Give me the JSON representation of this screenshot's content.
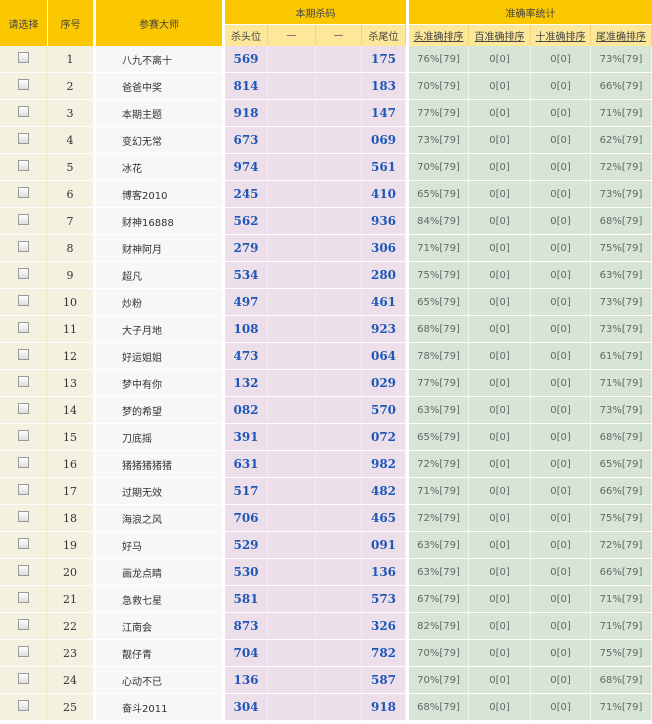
{
  "header": {
    "select": "请选择",
    "seq": "序号",
    "expert": "参赛大师",
    "current_group": "本期杀码",
    "stats_group": "准确率统计",
    "current_cols": [
      "杀头位",
      "—",
      "—",
      "杀尾位"
    ],
    "stats_cols": [
      "头准确排序",
      "百准确排序",
      "十准确排序",
      "尾准确排序"
    ]
  },
  "colors": {
    "header": "#fbc800",
    "number": "#1f57b8",
    "current_bg": "#ecdfea",
    "stats_bg": "#d6e5d6"
  },
  "rows": [
    {
      "seq": "1",
      "name": "八九不离十",
      "head": "569",
      "tail": "175",
      "s": [
        "76%[79]",
        "0[0]",
        "0[0]",
        "73%[79]"
      ]
    },
    {
      "seq": "2",
      "name": "爸爸中奖",
      "head": "814",
      "tail": "183",
      "s": [
        "70%[79]",
        "0[0]",
        "0[0]",
        "66%[79]"
      ]
    },
    {
      "seq": "3",
      "name": "本期主题",
      "head": "918",
      "tail": "147",
      "s": [
        "77%[79]",
        "0[0]",
        "0[0]",
        "71%[79]"
      ]
    },
    {
      "seq": "4",
      "name": "变幻无常",
      "head": "673",
      "tail": "069",
      "s": [
        "73%[79]",
        "0[0]",
        "0[0]",
        "62%[79]"
      ]
    },
    {
      "seq": "5",
      "name": "冰花",
      "head": "974",
      "tail": "561",
      "s": [
        "70%[79]",
        "0[0]",
        "0[0]",
        "72%[79]"
      ]
    },
    {
      "seq": "6",
      "name": "博客2010",
      "head": "245",
      "tail": "410",
      "s": [
        "65%[79]",
        "0[0]",
        "0[0]",
        "73%[79]"
      ]
    },
    {
      "seq": "7",
      "name": "财神16888",
      "head": "562",
      "tail": "936",
      "s": [
        "84%[79]",
        "0[0]",
        "0[0]",
        "68%[79]"
      ]
    },
    {
      "seq": "8",
      "name": "财神阿月",
      "head": "279",
      "tail": "306",
      "s": [
        "71%[79]",
        "0[0]",
        "0[0]",
        "75%[79]"
      ]
    },
    {
      "seq": "9",
      "name": "超凡",
      "head": "534",
      "tail": "280",
      "s": [
        "75%[79]",
        "0[0]",
        "0[0]",
        "63%[79]"
      ]
    },
    {
      "seq": "10",
      "name": "炒粉",
      "head": "497",
      "tail": "461",
      "s": [
        "65%[79]",
        "0[0]",
        "0[0]",
        "73%[79]"
      ]
    },
    {
      "seq": "11",
      "name": "大子月地",
      "head": "108",
      "tail": "923",
      "s": [
        "68%[79]",
        "0[0]",
        "0[0]",
        "73%[79]"
      ]
    },
    {
      "seq": "12",
      "name": "好运姐姐",
      "head": "473",
      "tail": "064",
      "s": [
        "78%[79]",
        "0[0]",
        "0[0]",
        "61%[79]"
      ]
    },
    {
      "seq": "13",
      "name": "梦中有你",
      "head": "132",
      "tail": "029",
      "s": [
        "77%[79]",
        "0[0]",
        "0[0]",
        "71%[79]"
      ]
    },
    {
      "seq": "14",
      "name": "梦的希望",
      "head": "082",
      "tail": "570",
      "s": [
        "63%[79]",
        "0[0]",
        "0[0]",
        "73%[79]"
      ]
    },
    {
      "seq": "15",
      "name": "刀底摇",
      "head": "391",
      "tail": "072",
      "s": [
        "65%[79]",
        "0[0]",
        "0[0]",
        "68%[79]"
      ]
    },
    {
      "seq": "16",
      "name": "猪猪猪猪猪",
      "head": "631",
      "tail": "982",
      "s": [
        "72%[79]",
        "0[0]",
        "0[0]",
        "65%[79]"
      ]
    },
    {
      "seq": "17",
      "name": "过期无效",
      "head": "517",
      "tail": "482",
      "s": [
        "71%[79]",
        "0[0]",
        "0[0]",
        "66%[79]"
      ]
    },
    {
      "seq": "18",
      "name": "海浪之风",
      "head": "706",
      "tail": "465",
      "s": [
        "72%[79]",
        "0[0]",
        "0[0]",
        "75%[79]"
      ]
    },
    {
      "seq": "19",
      "name": "好马",
      "head": "529",
      "tail": "091",
      "s": [
        "63%[79]",
        "0[0]",
        "0[0]",
        "72%[79]"
      ]
    },
    {
      "seq": "20",
      "name": "画龙点睛",
      "head": "530",
      "tail": "136",
      "s": [
        "63%[79]",
        "0[0]",
        "0[0]",
        "66%[79]"
      ]
    },
    {
      "seq": "21",
      "name": "急救七星",
      "head": "581",
      "tail": "573",
      "s": [
        "67%[79]",
        "0[0]",
        "0[0]",
        "71%[79]"
      ]
    },
    {
      "seq": "22",
      "name": "江南会",
      "head": "873",
      "tail": "326",
      "s": [
        "82%[79]",
        "0[0]",
        "0[0]",
        "71%[79]"
      ]
    },
    {
      "seq": "23",
      "name": "靓仔青",
      "head": "704",
      "tail": "782",
      "s": [
        "70%[79]",
        "0[0]",
        "0[0]",
        "75%[79]"
      ]
    },
    {
      "seq": "24",
      "name": "心动不已",
      "head": "136",
      "tail": "587",
      "s": [
        "70%[79]",
        "0[0]",
        "0[0]",
        "68%[79]"
      ]
    },
    {
      "seq": "25",
      "name": "奋斗2011",
      "head": "304",
      "tail": "918",
      "s": [
        "68%[79]",
        "0[0]",
        "0[0]",
        "71%[79]"
      ]
    }
  ]
}
